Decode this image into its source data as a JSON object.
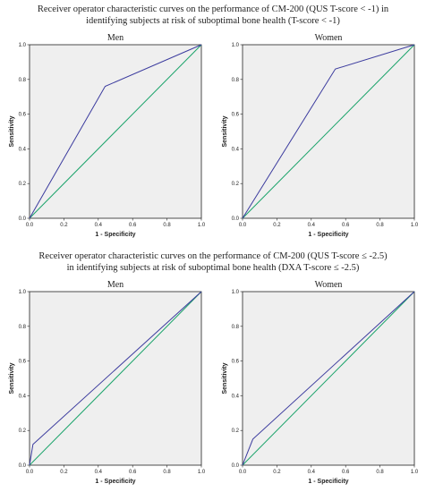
{
  "titles": {
    "top": {
      "line1": "Receiver operator characteristic curves on the performance of CM-200 (QUS T-score < -1) in",
      "line2": "identifying subjects at risk of suboptimal bone health (T-score < -1)"
    },
    "bottom": {
      "line1": "Receiver operator characteristic curves on the performance of CM-200 (QUS T-score ≤ -2.5)",
      "line2": "in identifying subjects at risk of suboptimal bone health (DXA T-score ≤ -2.5)"
    }
  },
  "colors": {
    "roc": "#3b3b9e",
    "reference": "#1aa36a",
    "plot_bg": "#efefef"
  },
  "chart_data": [
    {
      "type": "line",
      "title": "Men",
      "xlabel": "1 - Specificity",
      "ylabel": "Sensitivity",
      "xlim": [
        0,
        1
      ],
      "ylim": [
        0,
        1
      ],
      "xticks": [
        "0.0",
        "0.2",
        "0.4",
        "0.6",
        "0.8",
        "1.0"
      ],
      "yticks": [
        "0.0",
        "0.2",
        "0.4",
        "0.6",
        "0.8",
        "1.0"
      ],
      "series": [
        {
          "x": [
            0,
            0.44,
            1
          ],
          "y": [
            0,
            0.76,
            1
          ]
        },
        {
          "x": [
            0,
            1
          ],
          "y": [
            0,
            1
          ]
        }
      ]
    },
    {
      "type": "line",
      "title": "Women",
      "xlabel": "1 - Specificity",
      "ylabel": "Sensitivity",
      "xlim": [
        0,
        1
      ],
      "ylim": [
        0,
        1
      ],
      "xticks": [
        "0.0",
        "0.2",
        "0.4",
        "0.6",
        "0.8",
        "1.0"
      ],
      "yticks": [
        "0.0",
        "0.2",
        "0.4",
        "0.6",
        "0.8",
        "1.0"
      ],
      "series": [
        {
          "x": [
            0,
            0.54,
            1
          ],
          "y": [
            0,
            0.86,
            1
          ]
        },
        {
          "x": [
            0,
            1
          ],
          "y": [
            0,
            1
          ]
        }
      ]
    },
    {
      "type": "line",
      "title": "Men",
      "xlabel": "1 - Specificity",
      "ylabel": "Sensitivity",
      "xlim": [
        0,
        1
      ],
      "ylim": [
        0,
        1
      ],
      "xticks": [
        "0.0",
        "0.2",
        "0.4",
        "0.6",
        "0.8",
        "1.0"
      ],
      "yticks": [
        "0.0",
        "0.2",
        "0.4",
        "0.6",
        "0.8",
        "1.0"
      ],
      "series": [
        {
          "x": [
            0,
            0.02,
            1
          ],
          "y": [
            0,
            0.12,
            1
          ]
        },
        {
          "x": [
            0,
            1
          ],
          "y": [
            0,
            1
          ]
        }
      ]
    },
    {
      "type": "line",
      "title": "Women",
      "xlabel": "1 - Specificity",
      "ylabel": "Sensitivity",
      "xlim": [
        0,
        1
      ],
      "ylim": [
        0,
        1
      ],
      "xticks": [
        "0.0",
        "0.2",
        "0.4",
        "0.6",
        "0.8",
        "1.0"
      ],
      "yticks": [
        "0.0",
        "0.2",
        "0.4",
        "0.6",
        "0.8",
        "1.0"
      ],
      "series": [
        {
          "x": [
            0,
            0.06,
            1
          ],
          "y": [
            0,
            0.15,
            1
          ]
        },
        {
          "x": [
            0,
            1
          ],
          "y": [
            0,
            1
          ]
        }
      ]
    }
  ]
}
